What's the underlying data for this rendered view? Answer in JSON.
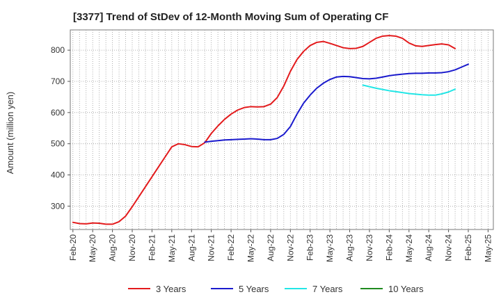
{
  "chart_data": {
    "type": "line",
    "title": "[3377]  Trend of StDev of 12-Month Moving Sum of Operating CF",
    "xlabel": "",
    "ylabel": "Amount (million yen)",
    "ylim": [
      225,
      865
    ],
    "yticks": [
      300,
      400,
      500,
      600,
      700,
      800
    ],
    "x_ticks": [
      "Feb-20",
      "May-20",
      "Aug-20",
      "Nov-20",
      "Feb-21",
      "May-21",
      "Aug-21",
      "Nov-21",
      "Feb-22",
      "May-22",
      "Aug-22",
      "Nov-22",
      "Feb-23",
      "May-23",
      "Aug-23",
      "Nov-23",
      "Feb-24",
      "May-24",
      "Aug-24",
      "Nov-24",
      "Feb-25",
      "May-25"
    ],
    "grid": true,
    "legend_position": "bottom",
    "colors": {
      "3 Years": "#e31a1c",
      "5 Years": "#1a1acd",
      "7 Years": "#22e6e6",
      "10 Years": "#1f8a1f"
    },
    "series": [
      {
        "name": "3 Years",
        "start": "Feb-20",
        "values": [
          248,
          244,
          243,
          246,
          245,
          242,
          242,
          250,
          268,
          298,
          330,
          362,
          394,
          426,
          458,
          490,
          500,
          497,
          491,
          490,
          503,
          533,
          557,
          578,
          595,
          608,
          616,
          619,
          618,
          619,
          627,
          648,
          685,
          732,
          770,
          796,
          815,
          825,
          828,
          822,
          815,
          808,
          805,
          806,
          812,
          825,
          838,
          845,
          847,
          845,
          838,
          823,
          814,
          812,
          815,
          818,
          820,
          817,
          805
        ]
      },
      {
        "name": "5 Years",
        "start": "Oct-21",
        "values": [
          505,
          508,
          510,
          512,
          513,
          514,
          515,
          516,
          515,
          513,
          513,
          517,
          530,
          555,
          595,
          630,
          656,
          678,
          694,
          706,
          714,
          716,
          715,
          712,
          709,
          708,
          710,
          714,
          718,
          721,
          723,
          725,
          726,
          726,
          727,
          727,
          728,
          731,
          737,
          746,
          755
        ]
      },
      {
        "name": "7 Years",
        "start": "Oct-23",
        "values": [
          688,
          683,
          678,
          674,
          670,
          667,
          664,
          661,
          659,
          657,
          656,
          656,
          660,
          666,
          675
        ]
      },
      {
        "name": "10 Years",
        "start": "",
        "values": []
      }
    ]
  }
}
